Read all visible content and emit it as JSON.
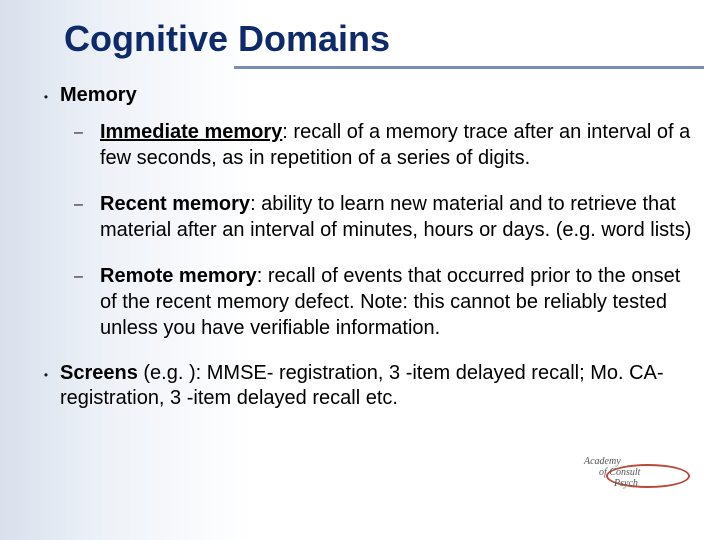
{
  "colors": {
    "title": "#0f2a6b",
    "underline": "#7a8db8",
    "text": "#000000",
    "logo_oval": "#b84a3a",
    "bg_gradient_from": "#d8e0ec",
    "bg_gradient_mid": "#eef2f8",
    "bg_gradient_to": "#ffffff"
  },
  "typography": {
    "title_fontsize": 36,
    "body_fontsize": 20,
    "font_family": "Arial"
  },
  "title": "Cognitive Domains",
  "memory": {
    "heading": "Memory",
    "items": [
      {
        "term": "Immediate memory",
        "underline_term": true,
        "definition": ": recall of a memory trace after an interval of a few seconds, as in repetition of a series of digits."
      },
      {
        "term": "Recent memory",
        "underline_term": false,
        "definition": ": ability to learn new material and to retrieve that material after an interval of minutes, hours or days. (e.g. word lists)"
      },
      {
        "term": "Remote memory",
        "underline_term": false,
        "definition": ": recall of events that occurred prior to the onset of the recent memory defect. Note: this cannot be reliably tested unless you have verifiable information."
      }
    ]
  },
  "screens": {
    "heading": "Screens",
    "text": " (e.g. ): MMSE- registration, 3 -item delayed recall; Mo. CA- registration, 3 -item delayed recall etc."
  },
  "logo": {
    "text": "Academy\n      of Consult\n            Psych"
  }
}
